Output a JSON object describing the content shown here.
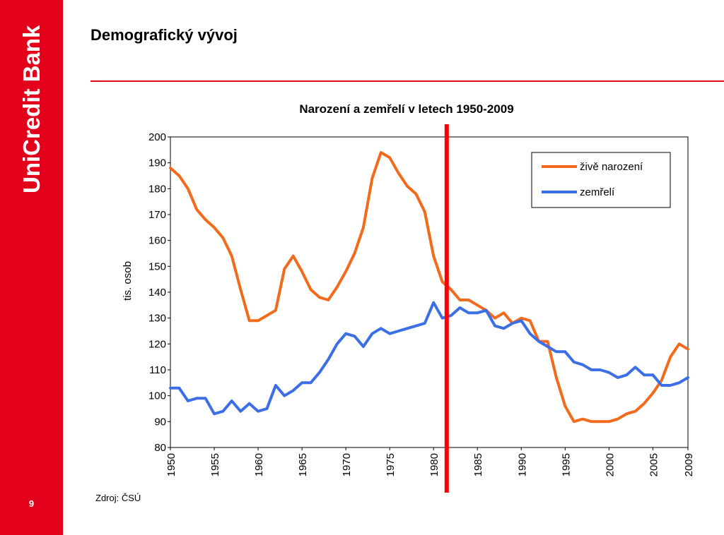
{
  "slide": {
    "title": "Demografický vývoj",
    "page_number": "9",
    "source": "Zdroj: ČSÚ"
  },
  "brand": {
    "name": "UniCredit Bank",
    "color": "#e2001a"
  },
  "chart_data": {
    "type": "line",
    "title": "Narození a zemřelí v letech 1950-2009",
    "ylabel": "tis. osob",
    "xlabel": "",
    "ylim": [
      80,
      200
    ],
    "y_ticks": [
      80,
      90,
      100,
      110,
      120,
      130,
      140,
      150,
      160,
      170,
      180,
      190,
      200
    ],
    "x_ticks": [
      1950,
      1955,
      1960,
      1965,
      1970,
      1975,
      1980,
      1985,
      1990,
      1995,
      2000,
      2005,
      2009
    ],
    "grid": true,
    "legend_position": "top-right",
    "marker_line": {
      "year": 1981.5,
      "color": "#ff0000"
    },
    "x": [
      1950,
      1951,
      1952,
      1953,
      1954,
      1955,
      1956,
      1957,
      1958,
      1959,
      1960,
      1961,
      1962,
      1963,
      1964,
      1965,
      1966,
      1967,
      1968,
      1969,
      1970,
      1971,
      1972,
      1973,
      1974,
      1975,
      1976,
      1977,
      1978,
      1979,
      1980,
      1981,
      1982,
      1983,
      1984,
      1985,
      1986,
      1987,
      1988,
      1989,
      1990,
      1991,
      1992,
      1993,
      1994,
      1995,
      1996,
      1997,
      1998,
      1999,
      2000,
      2001,
      2002,
      2003,
      2004,
      2005,
      2006,
      2007,
      2008,
      2009
    ],
    "series": [
      {
        "name": "živě narození",
        "color": "#f26b1d",
        "values": [
          188,
          185,
          180,
          172,
          168,
          165,
          161,
          154,
          141,
          129,
          129,
          131,
          133,
          149,
          154,
          148,
          141,
          138,
          137,
          142,
          148,
          155,
          165,
          184,
          194,
          192,
          186,
          181,
          178,
          171,
          154,
          144,
          141,
          137,
          137,
          135,
          133,
          130,
          132,
          128,
          130,
          129,
          121,
          121,
          107,
          96,
          90,
          91,
          90,
          90,
          90,
          91,
          93,
          94,
          97,
          101,
          106,
          115,
          120,
          118
        ],
        "label_values": false
      },
      {
        "name": "zemřelí",
        "color": "#3c6ee6",
        "values": [
          103,
          103,
          98,
          99,
          99,
          93,
          94,
          98,
          94,
          97,
          94,
          95,
          104,
          100,
          102,
          105,
          105,
          109,
          114,
          120,
          124,
          123,
          119,
          124,
          126,
          124,
          125,
          126,
          127,
          128,
          136,
          130,
          131,
          134,
          132,
          132,
          133,
          127,
          126,
          128,
          129,
          124,
          121,
          119,
          117,
          117,
          113,
          112,
          110,
          110,
          109,
          107,
          108,
          111,
          108,
          108,
          104,
          104,
          105,
          107
        ]
      }
    ]
  }
}
